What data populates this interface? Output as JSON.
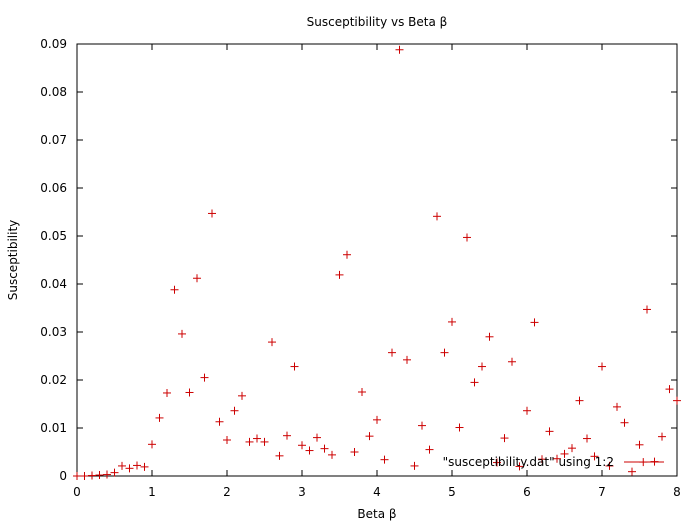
{
  "chart_data": {
    "type": "scatter",
    "title": "Susceptibility vs Beta β",
    "xlabel": "Beta β",
    "ylabel": "Susceptibility",
    "xlim": [
      0,
      8
    ],
    "ylim": [
      0,
      0.09
    ],
    "xticks": [
      "0",
      "1",
      "2",
      "3",
      "4",
      "5",
      "6",
      "7",
      "8"
    ],
    "yticks": [
      "0",
      "0.01",
      "0.02",
      "0.03",
      "0.04",
      "0.05",
      "0.06",
      "0.07",
      "0.08",
      "0.09"
    ],
    "grid": false,
    "legend": {
      "position": "bottom-right",
      "entries": [
        "\"susceptibility.dat\" using 1:2"
      ]
    },
    "series": [
      {
        "name": "\"susceptibility.dat\" using 1:2",
        "color": "#cc0000",
        "marker": "plus",
        "points": [
          [
            0.0,
            0.0
          ],
          [
            0.1,
            0.0
          ],
          [
            0.2,
            0.0001
          ],
          [
            0.3,
            0.0002
          ],
          [
            0.4,
            0.0003
          ],
          [
            0.5,
            0.0007
          ],
          [
            0.6,
            0.0021
          ],
          [
            0.7,
            0.0016
          ],
          [
            0.8,
            0.0022
          ],
          [
            0.9,
            0.0019
          ],
          [
            1.0,
            0.0066
          ],
          [
            1.1,
            0.0121
          ],
          [
            1.2,
            0.0173
          ],
          [
            1.3,
            0.0388
          ],
          [
            1.4,
            0.0296
          ],
          [
            1.5,
            0.0174
          ],
          [
            1.6,
            0.0412
          ],
          [
            1.7,
            0.0205
          ],
          [
            1.8,
            0.0547
          ],
          [
            1.9,
            0.0113
          ],
          [
            2.0,
            0.0075
          ],
          [
            2.1,
            0.0136
          ],
          [
            2.2,
            0.0167
          ],
          [
            2.3,
            0.0071
          ],
          [
            2.4,
            0.0078
          ],
          [
            2.5,
            0.0071
          ],
          [
            2.6,
            0.0279
          ],
          [
            2.7,
            0.0042
          ],
          [
            2.8,
            0.0084
          ],
          [
            2.9,
            0.0228
          ],
          [
            3.0,
            0.0064
          ],
          [
            3.1,
            0.0053
          ],
          [
            3.2,
            0.008
          ],
          [
            3.3,
            0.0057
          ],
          [
            3.4,
            0.0044
          ],
          [
            3.5,
            0.0419
          ],
          [
            3.6,
            0.0461
          ],
          [
            3.7,
            0.005
          ],
          [
            3.8,
            0.0175
          ],
          [
            3.9,
            0.0083
          ],
          [
            4.0,
            0.0117
          ],
          [
            4.1,
            0.0034
          ],
          [
            4.2,
            0.0257
          ],
          [
            4.3,
            0.0888
          ],
          [
            4.4,
            0.0242
          ],
          [
            4.5,
            0.0021
          ],
          [
            4.6,
            0.0105
          ],
          [
            4.7,
            0.0055
          ],
          [
            4.8,
            0.0541
          ],
          [
            4.9,
            0.0257
          ],
          [
            5.0,
            0.0321
          ],
          [
            5.1,
            0.0101
          ],
          [
            5.2,
            0.0497
          ],
          [
            5.3,
            0.0195
          ],
          [
            5.4,
            0.0228
          ],
          [
            5.5,
            0.029
          ],
          [
            5.6,
            0.0028
          ],
          [
            5.7,
            0.0079
          ],
          [
            5.8,
            0.0238
          ],
          [
            5.9,
            0.002
          ],
          [
            6.0,
            0.0136
          ],
          [
            6.1,
            0.032
          ],
          [
            6.2,
            0.0035
          ],
          [
            6.3,
            0.0093
          ],
          [
            6.4,
            0.0036
          ],
          [
            6.5,
            0.0046
          ],
          [
            6.6,
            0.0058
          ],
          [
            6.7,
            0.0157
          ],
          [
            6.8,
            0.0078
          ],
          [
            6.9,
            0.0041
          ],
          [
            7.0,
            0.0228
          ],
          [
            7.1,
            0.0021
          ],
          [
            7.2,
            0.0144
          ],
          [
            7.3,
            0.0111
          ],
          [
            7.4,
            0.0009
          ],
          [
            7.5,
            0.0065
          ],
          [
            7.55,
            0.0029
          ],
          [
            7.6,
            0.0347
          ],
          [
            7.7,
            0.003
          ],
          [
            7.8,
            0.0082
          ],
          [
            7.9,
            0.0181
          ],
          [
            8.0,
            0.0157
          ]
        ]
      }
    ]
  }
}
